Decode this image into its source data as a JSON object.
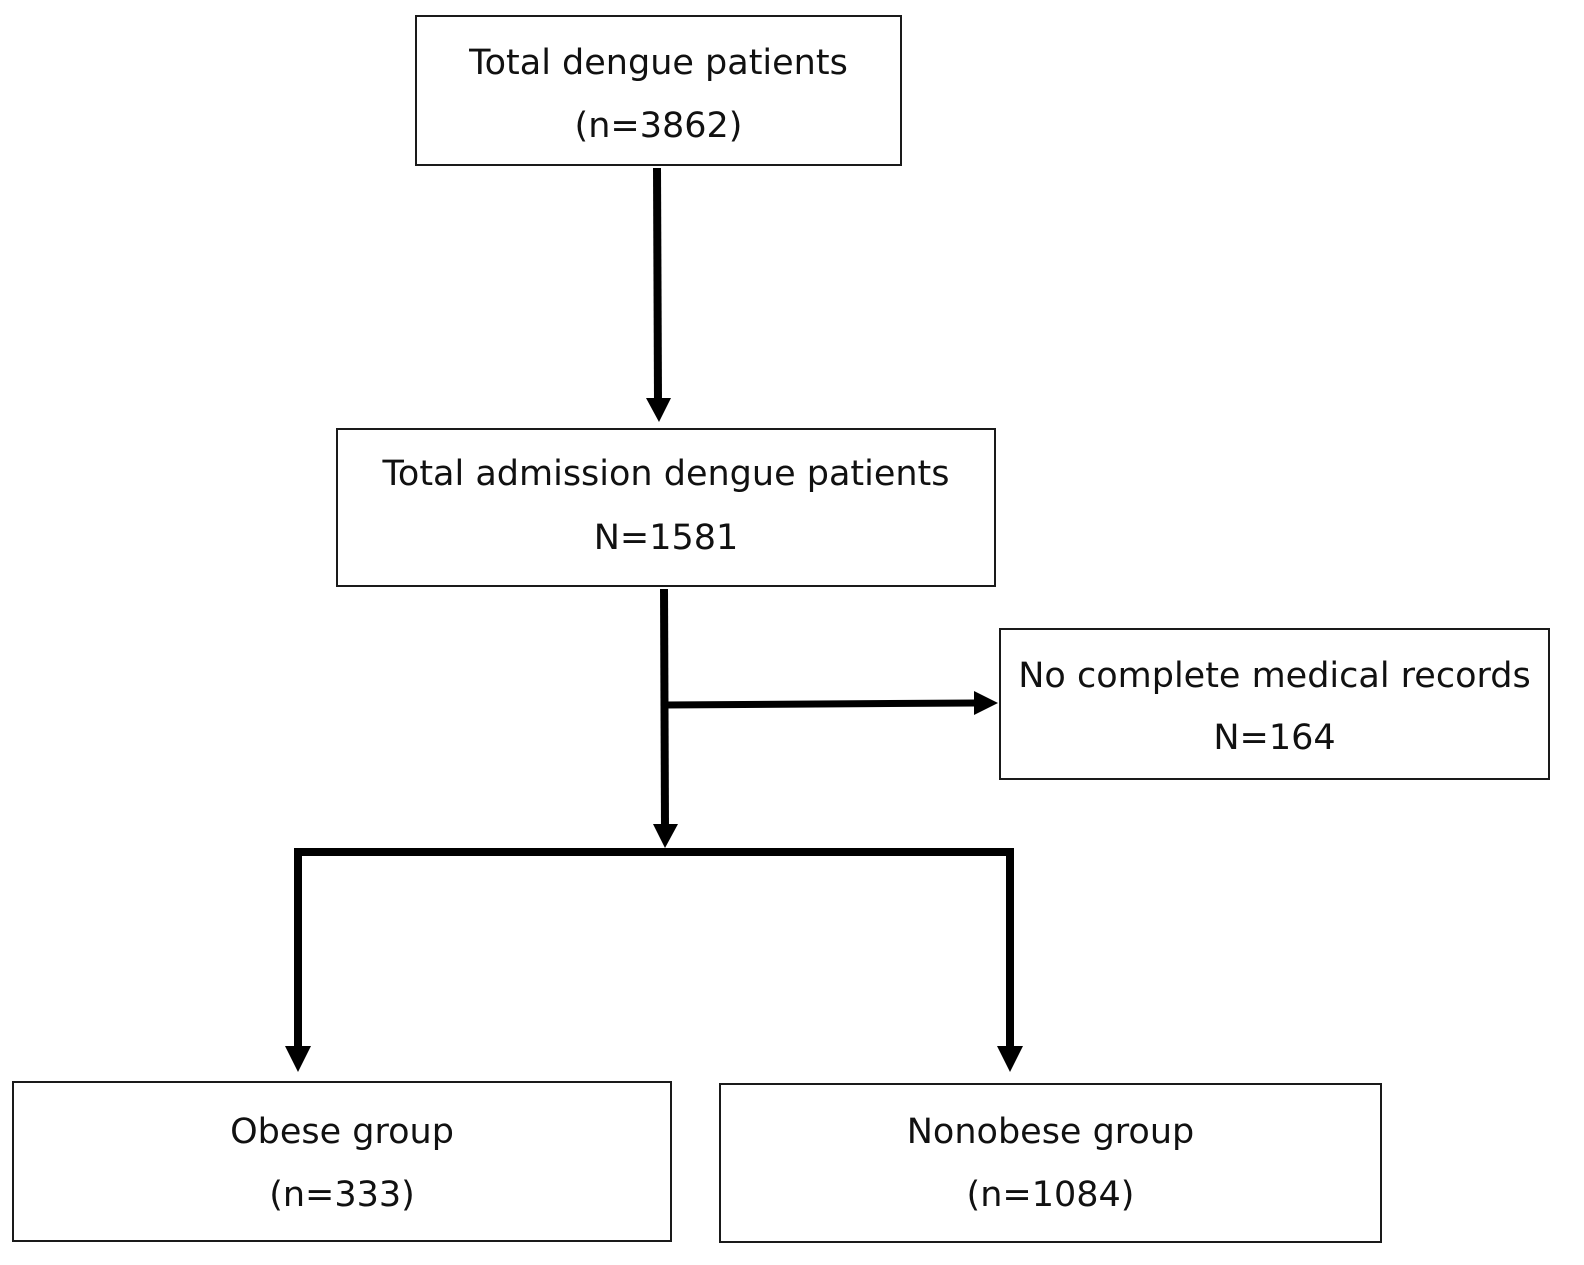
{
  "nodes": {
    "total": {
      "line1": "Total dengue patients",
      "line2": "(n=3862)"
    },
    "admission": {
      "line1": "Total admission dengue patients",
      "line2": "N=1581"
    },
    "excluded": {
      "line1": "No complete medical records",
      "line2": "N=164"
    },
    "obese": {
      "line1": "Obese group",
      "line2": "(n=333)"
    },
    "nonobese": {
      "line1": "Nonobese group",
      "line2": "(n=1084)"
    }
  },
  "edges": [
    {
      "from": "total",
      "to": "admission"
    },
    {
      "from": "admission",
      "to": "excluded"
    },
    {
      "from": "admission",
      "to": "obese"
    },
    {
      "from": "admission",
      "to": "nonobese"
    }
  ],
  "colors": {
    "line": "#000000",
    "box_border": "#1a1a1a",
    "text": "#111111"
  }
}
